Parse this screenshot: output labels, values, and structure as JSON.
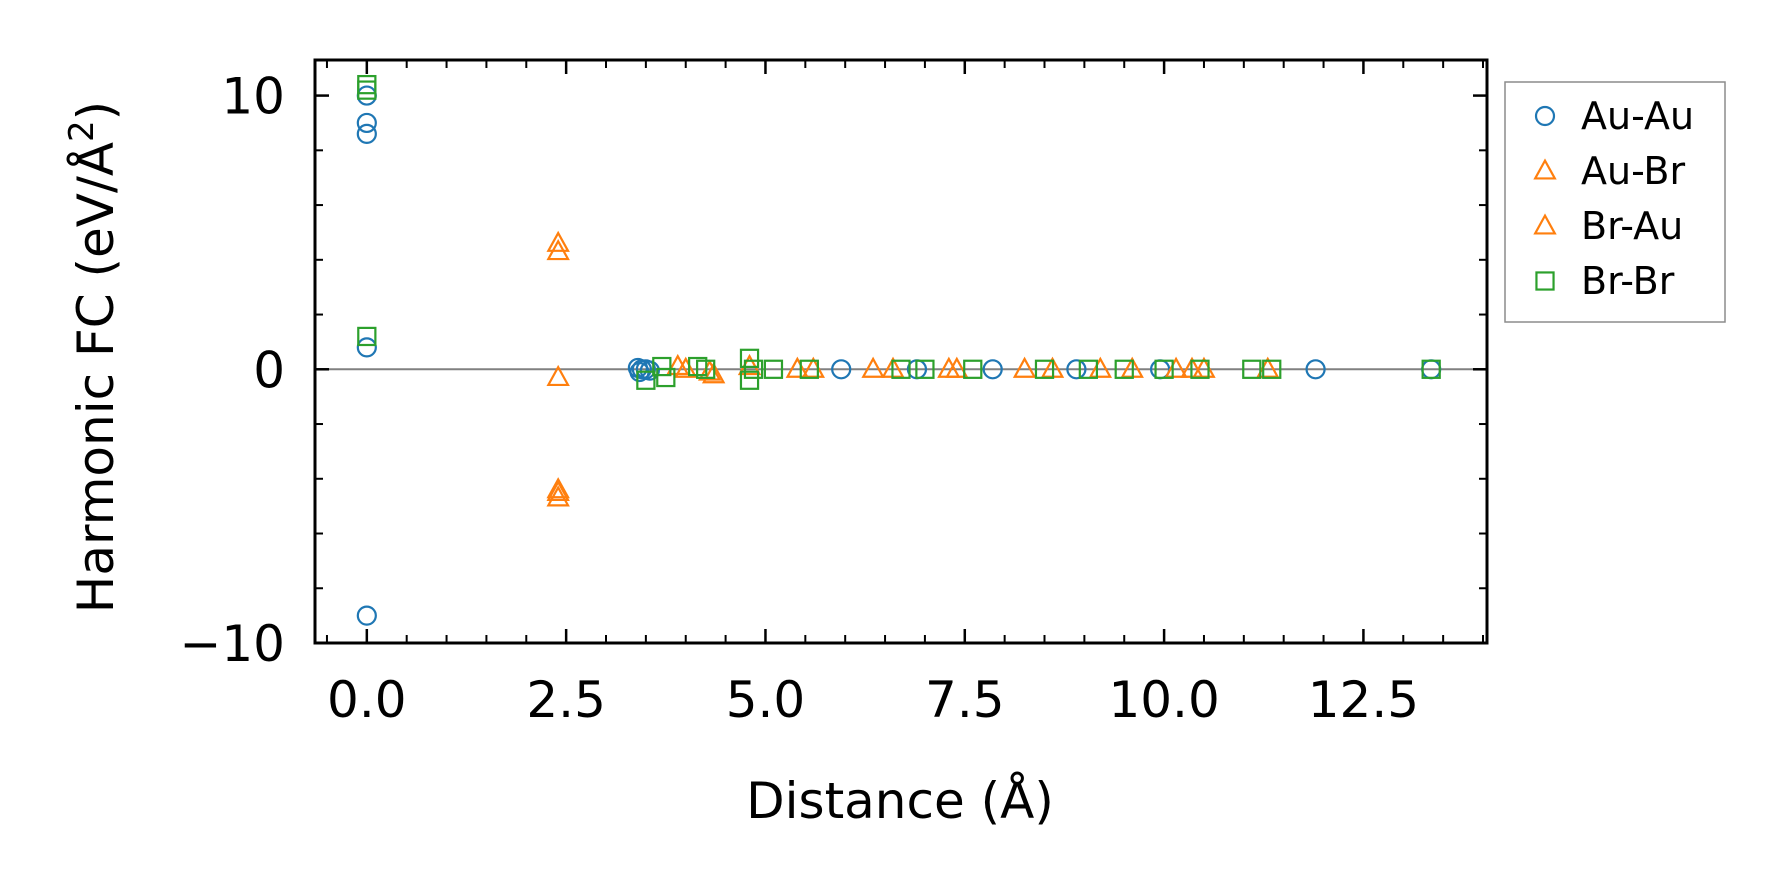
{
  "chart_data": {
    "type": "scatter",
    "title": "",
    "xlabel": "Distance (Å)",
    "ylabel_main": "Harmonic FC (eV/Å",
    "ylabel_sup": "2",
    "ylabel_close": ")",
    "xlim": [
      -0.65,
      14.05
    ],
    "ylim": [
      -10.0,
      11.3
    ],
    "x_ticks": [
      0.0,
      2.5,
      5.0,
      7.5,
      10.0,
      12.5
    ],
    "x_tick_labels": [
      "0.0",
      "2.5",
      "5.0",
      "7.5",
      "10.0",
      "12.5"
    ],
    "y_ticks": [
      -10,
      0,
      10
    ],
    "y_tick_labels": [
      "−10",
      "0",
      "10"
    ],
    "reference_line_y": 0,
    "legend_position": "outside-right-top",
    "series": [
      {
        "name": "Au-Au",
        "marker": "circle",
        "color": "#1f77b4",
        "points": [
          [
            0,
            10.0
          ],
          [
            0,
            9.0
          ],
          [
            0,
            8.6
          ],
          [
            0,
            0.8
          ],
          [
            0,
            -9.0
          ],
          [
            3.4,
            0.05
          ],
          [
            3.42,
            -0.1
          ],
          [
            3.45,
            0.0
          ],
          [
            3.5,
            0.0
          ],
          [
            3.55,
            -0.05
          ],
          [
            5.95,
            0.0
          ],
          [
            6.9,
            0.0
          ],
          [
            7.85,
            0.0
          ],
          [
            8.9,
            0.0
          ],
          [
            9.95,
            0.0
          ],
          [
            11.9,
            0.0
          ],
          [
            13.35,
            0.0
          ]
        ]
      },
      {
        "name": "Au-Br",
        "marker": "triangle",
        "color": "#ff7f0e",
        "points": [
          [
            2.4,
            4.6
          ],
          [
            2.4,
            -0.3
          ],
          [
            2.4,
            -4.4
          ],
          [
            3.9,
            0.1
          ],
          [
            4.3,
            -0.1
          ],
          [
            4.8,
            0.1
          ],
          [
            5.4,
            0.0
          ],
          [
            6.35,
            0.0
          ],
          [
            7.3,
            0.0
          ],
          [
            8.25,
            0.0
          ],
          [
            9.2,
            0.0
          ],
          [
            10.15,
            0.0
          ],
          [
            10.5,
            0.0
          ]
        ]
      },
      {
        "name": "Br-Au",
        "marker": "triangle",
        "color": "#ff7f0e",
        "points": [
          [
            2.4,
            4.3
          ],
          [
            2.4,
            -4.7
          ],
          [
            2.4,
            -4.5
          ],
          [
            4.0,
            0.0
          ],
          [
            4.35,
            -0.2
          ],
          [
            5.6,
            0.0
          ],
          [
            6.6,
            0.0
          ],
          [
            7.4,
            0.0
          ],
          [
            8.6,
            0.0
          ],
          [
            9.6,
            0.0
          ],
          [
            10.35,
            0.0
          ],
          [
            11.3,
            0.0
          ]
        ]
      },
      {
        "name": "Br-Br",
        "marker": "square",
        "color": "#2ca02c",
        "points": [
          [
            0,
            10.4
          ],
          [
            0,
            10.2
          ],
          [
            0,
            1.2
          ],
          [
            3.5,
            -0.4
          ],
          [
            3.7,
            0.1
          ],
          [
            3.75,
            -0.3
          ],
          [
            4.15,
            0.1
          ],
          [
            4.25,
            0.0
          ],
          [
            4.8,
            0.4
          ],
          [
            4.8,
            -0.4
          ],
          [
            4.85,
            0.0
          ],
          [
            5.1,
            0.0
          ],
          [
            5.55,
            0.0
          ],
          [
            6.7,
            0.0
          ],
          [
            7.0,
            0.0
          ],
          [
            7.6,
            0.0
          ],
          [
            8.5,
            0.0
          ],
          [
            9.05,
            0.0
          ],
          [
            9.5,
            0.0
          ],
          [
            10.0,
            0.0
          ],
          [
            10.45,
            0.0
          ],
          [
            11.1,
            0.0
          ],
          [
            11.35,
            0.0
          ],
          [
            13.35,
            0.0
          ]
        ]
      }
    ]
  }
}
